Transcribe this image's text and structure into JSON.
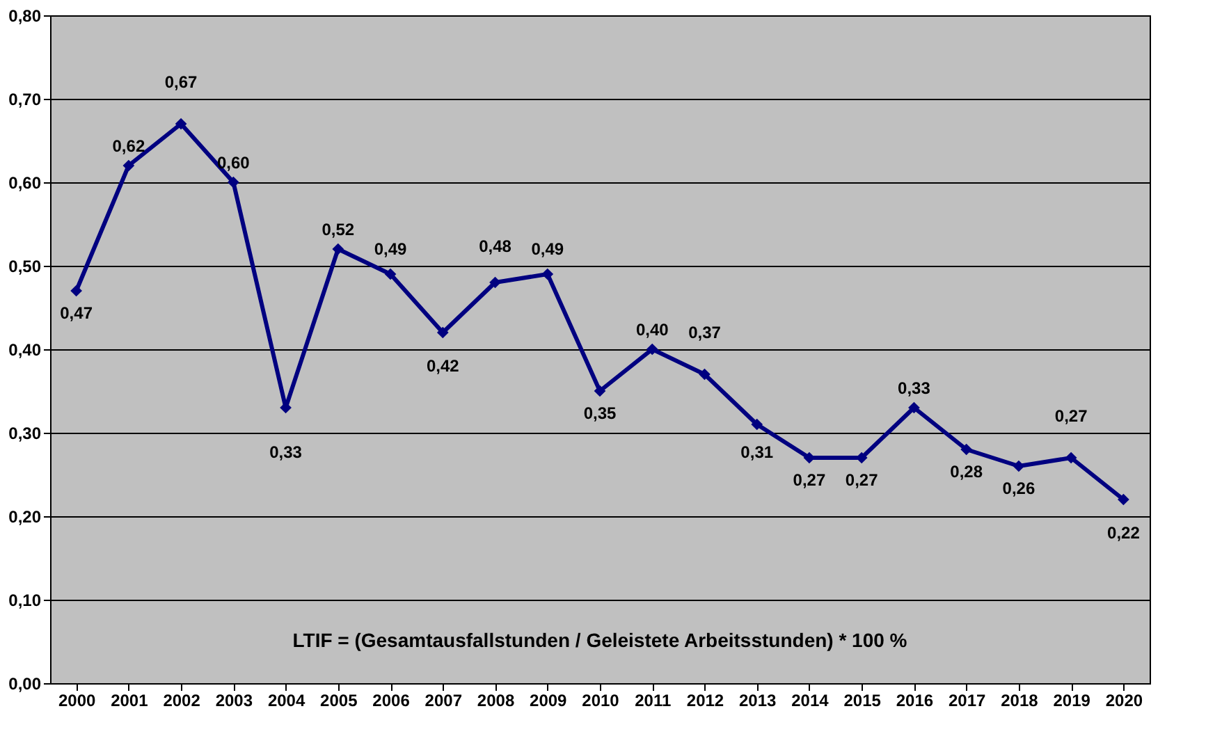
{
  "chart_data": {
    "type": "line",
    "categories": [
      "2000",
      "2001",
      "2002",
      "2003",
      "2004",
      "2005",
      "2006",
      "2007",
      "2008",
      "2009",
      "2010",
      "2011",
      "2012",
      "2013",
      "2014",
      "2015",
      "2016",
      "2017",
      "2018",
      "2019",
      "2020"
    ],
    "series": [
      {
        "color": "#000080",
        "values": [
          0.47,
          0.62,
          0.67,
          0.6,
          0.33,
          0.52,
          0.49,
          0.42,
          0.48,
          0.49,
          0.35,
          0.4,
          0.37,
          0.31,
          0.27,
          0.27,
          0.33,
          0.28,
          0.26,
          0.27,
          0.22
        ],
        "value_labels": [
          "0,47",
          "0,62",
          "0,67",
          "0,60",
          "0,33",
          "0,52",
          "0,49",
          "0,42",
          "0,48",
          "0,49",
          "0,35",
          "0,40",
          "0,37",
          "0,31",
          "0,27",
          "0,27",
          "0,33",
          "0,28",
          "0,26",
          "0,27",
          "0,22"
        ]
      }
    ],
    "ylim": [
      0,
      0.8
    ],
    "yticks": [
      {
        "value": 0,
        "label": "0,00"
      },
      {
        "value": 0.1,
        "label": "0,10"
      },
      {
        "value": 0.2,
        "label": "0,20"
      },
      {
        "value": 0.3,
        "label": "0,30"
      },
      {
        "value": 0.4,
        "label": "0,40"
      },
      {
        "value": 0.5,
        "label": "0,50"
      },
      {
        "value": 0.6,
        "label": "0,60"
      },
      {
        "value": 0.7,
        "label": "0,70"
      },
      {
        "value": 0.8,
        "label": "0,80"
      }
    ],
    "grid": "y",
    "marker": "diamond",
    "line_style": "solid",
    "annotations": [
      "LTIF = (Gesamtausfallstunden / Geleistete Arbeitsstunden) * 100 %"
    ]
  }
}
